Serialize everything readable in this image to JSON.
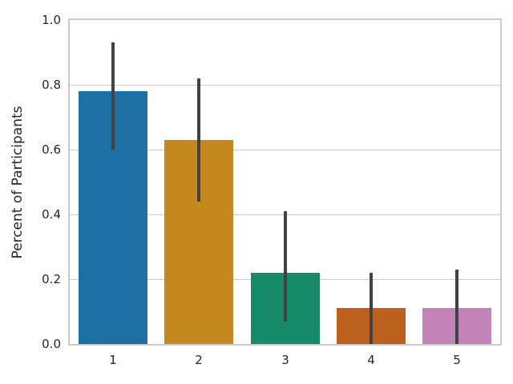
{
  "figure": {
    "background": "#ffffff",
    "text_color": "#262626"
  },
  "chart_data": {
    "type": "bar",
    "ylabel": "Percent of Participants",
    "categories": [
      "1",
      "2",
      "3",
      "4",
      "5"
    ],
    "values": [
      0.78,
      0.63,
      0.22,
      0.11,
      0.11
    ],
    "error_bars": [
      {
        "low": 0.6,
        "high": 0.93
      },
      {
        "low": 0.44,
        "high": 0.82
      },
      {
        "low": 0.07,
        "high": 0.41
      },
      {
        "low": 0.0,
        "high": 0.22
      },
      {
        "low": 0.0,
        "high": 0.23
      }
    ],
    "bar_colors": [
      "#1c70a4",
      "#c5881f",
      "#158b6a",
      "#bb611d",
      "#c183b8"
    ],
    "error_bar_color": "#424242",
    "ytick_labels": [
      "0.0",
      "0.2",
      "0.4",
      "0.6",
      "0.8",
      "1.0"
    ],
    "ylim": [
      0,
      1
    ],
    "bar_width_fraction": 0.8,
    "grid": "horizontal",
    "grid_color": "#cccccc",
    "legend": "none",
    "style": "whitegrid"
  }
}
